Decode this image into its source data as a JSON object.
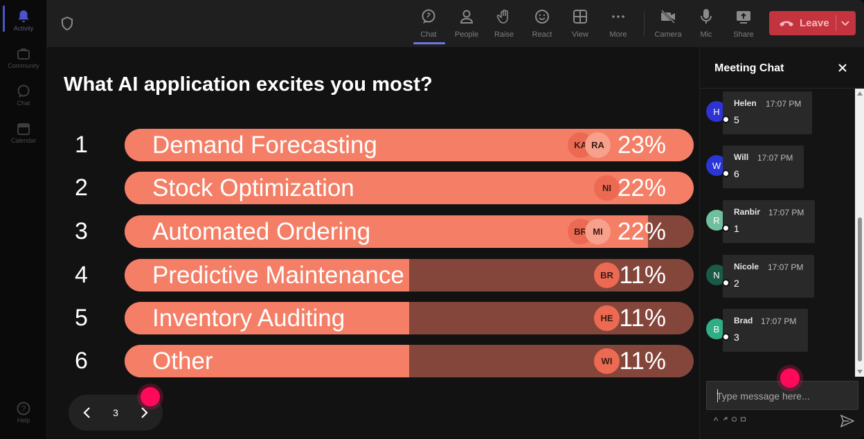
{
  "rail": {
    "items": [
      {
        "label": "Activity",
        "icon": "bell-icon"
      },
      {
        "label": "Community",
        "icon": "community-icon"
      },
      {
        "label": "Chat",
        "icon": "chat-icon"
      },
      {
        "label": "Calendar",
        "icon": "calendar-icon"
      }
    ],
    "help": {
      "label": "Help",
      "icon": "help-icon"
    }
  },
  "toolbar": {
    "chat": "Chat",
    "people": "People",
    "raise": "Raise",
    "react": "React",
    "view": "View",
    "more": "More",
    "camera": "Camera",
    "mic": "Mic",
    "share": "Share",
    "leave": "Leave"
  },
  "poll": {
    "question": "What AI application excites you most?",
    "options": [
      {
        "num": "1",
        "label": "Demand Forecasting",
        "pct": "23%",
        "fill": 1.0,
        "voters": [
          "KA",
          "RA"
        ]
      },
      {
        "num": "2",
        "label": "Stock Optimization",
        "pct": "22%",
        "fill": 1.0,
        "voters": [
          "NI"
        ]
      },
      {
        "num": "3",
        "label": "Automated Ordering",
        "pct": "22%",
        "fill": 0.92,
        "voters": [
          "BR",
          "MI"
        ]
      },
      {
        "num": "4",
        "label": "Predictive Maintenance",
        "pct": "11%",
        "fill": 0.5,
        "voters": [
          "BR"
        ]
      },
      {
        "num": "5",
        "label": "Inventory Auditing",
        "pct": "11%",
        "fill": 0.5,
        "voters": [
          "HE"
        ]
      },
      {
        "num": "6",
        "label": "Other",
        "pct": "11%",
        "fill": 0.5,
        "voters": [
          "WI"
        ]
      }
    ],
    "page": "3"
  },
  "chat": {
    "title": "Meeting Chat",
    "messages": [
      {
        "initial": "H",
        "name": "Helen",
        "time": "17:07 PM",
        "text": "5",
        "color": "#2d34d3"
      },
      {
        "initial": "W",
        "name": "Will",
        "time": "17:07 PM",
        "text": "6",
        "color": "#2a35d6"
      },
      {
        "initial": "R",
        "name": "Ranbir",
        "time": "17:07 PM",
        "text": "1",
        "color": "#6fbf9e"
      },
      {
        "initial": "N",
        "name": "Nicole",
        "time": "17:07 PM",
        "text": "2",
        "color": "#1a5a46"
      },
      {
        "initial": "B",
        "name": "Brad",
        "time": "17:07 PM",
        "text": "3",
        "color": "#2fae86"
      }
    ],
    "input_placeholder": "Type message here..."
  },
  "colors": {
    "accent": "#6d77e6",
    "leave": "#c4343e",
    "bar_fill": "#f47f66",
    "bar_track": "#84463a",
    "cursor_dot": "#ff0a5a"
  }
}
